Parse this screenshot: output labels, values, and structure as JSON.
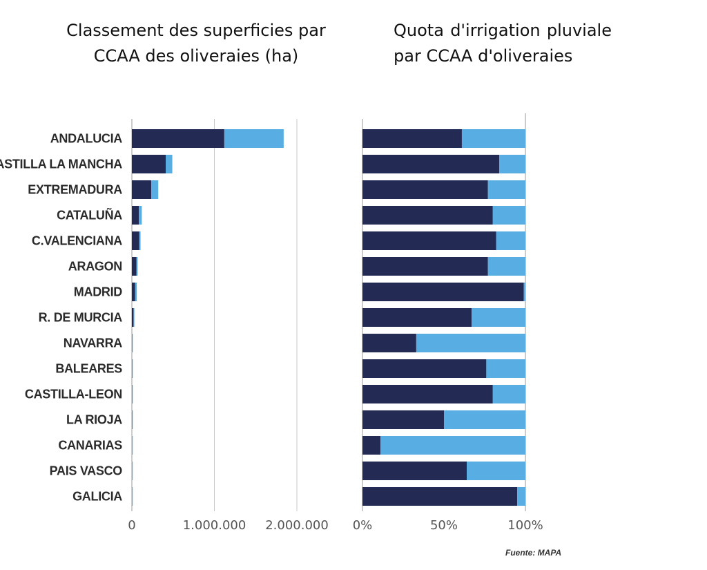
{
  "colors": {
    "dark": "#232a53",
    "light": "#58aee2",
    "grid": "#c9c9c9",
    "axis": "#9a9a9a"
  },
  "chart_data": [
    {
      "type": "bar",
      "orientation": "horizontal",
      "stacked": true,
      "title": "Classement des superficies par CCAA des oliveraies (ha)",
      "categories": [
        "ANDALUCIA",
        "CASTILLA LA MANCHA",
        "EXTREMADURA",
        "CATALUÑA",
        "C.VALENCIANA",
        "ARAGON",
        "MADRID",
        "R. DE MURCIA",
        "NAVARRA",
        "BALEARES",
        "CASTILLA-LEON",
        "LA RIOJA",
        "CANARIAS",
        "PAIS VASCO",
        "GALICIA"
      ],
      "series": [
        {
          "name": "dark",
          "values": [
            1120000,
            410000,
            235000,
            85000,
            90000,
            55000,
            40000,
            20000,
            3000,
            3000,
            3000,
            3000,
            1000,
            1000,
            1000
          ]
        },
        {
          "name": "light",
          "values": [
            720000,
            80000,
            85000,
            35000,
            15000,
            15000,
            20000,
            10000,
            7000,
            7000,
            7000,
            7000,
            9000,
            9000,
            9000
          ]
        }
      ],
      "xlim": [
        0,
        2000000
      ],
      "xticks": [
        0,
        1000000,
        2000000
      ],
      "xtick_labels": [
        "0",
        "1.000.000",
        "2.000.000"
      ],
      "xlabel": "",
      "ylabel": ""
    },
    {
      "type": "bar",
      "orientation": "horizontal",
      "stacked": true,
      "title": "Quota d'irrigation pluviale par CCAA d'oliveraies",
      "categories": [
        "ANDALUCIA",
        "CASTILLA LA MANCHA",
        "EXTREMADURA",
        "CATALUÑA",
        "C.VALENCIANA",
        "ARAGON",
        "MADRID",
        "R. DE MURCIA",
        "NAVARRA",
        "BALEARES",
        "CASTILLA-LEON",
        "LA RIOJA",
        "CANARIAS",
        "PAIS VASCO",
        "GALICIA"
      ],
      "series": [
        {
          "name": "dark",
          "values": [
            61,
            84,
            77,
            80,
            82,
            77,
            99,
            67,
            33,
            76,
            80,
            50,
            11,
            64,
            95
          ]
        },
        {
          "name": "light",
          "values": [
            39,
            16,
            23,
            20,
            18,
            23,
            1,
            33,
            67,
            24,
            20,
            50,
            89,
            36,
            5
          ]
        }
      ],
      "xlim": [
        0,
        100
      ],
      "xticks": [
        0,
        50,
        100
      ],
      "xtick_labels": [
        "0%",
        "50%",
        "100%"
      ],
      "xlabel": "",
      "ylabel": ""
    }
  ],
  "source": "Fuente: MAPA"
}
